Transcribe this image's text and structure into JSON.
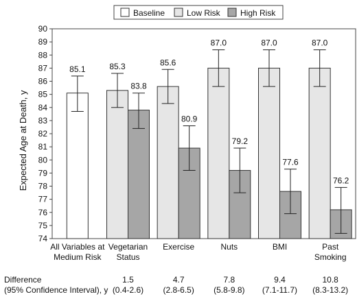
{
  "chart_data": {
    "type": "bar",
    "ylabel": "Expected Age at Death, y",
    "ylim": [
      74,
      90
    ],
    "yticks": [
      74,
      75,
      76,
      77,
      78,
      79,
      80,
      81,
      82,
      83,
      84,
      85,
      86,
      87,
      88,
      89,
      90
    ],
    "legend_position": "top-right",
    "categories": [
      [
        "All Variables at",
        "Medium Risk"
      ],
      [
        "Vegetarian",
        "Status"
      ],
      [
        "Exercise"
      ],
      [
        "Nuts"
      ],
      [
        "BMI"
      ],
      [
        "Past",
        "Smoking"
      ]
    ],
    "series": [
      {
        "name": "Baseline",
        "color": "#ffffff",
        "values": [
          85.1,
          null,
          null,
          null,
          null,
          null
        ],
        "labels": [
          "85.1",
          null,
          null,
          null,
          null,
          null
        ],
        "ci": [
          [
            83.7,
            86.4
          ],
          null,
          null,
          null,
          null,
          null
        ]
      },
      {
        "name": "Low Risk",
        "color": "#e6e6e6",
        "values": [
          null,
          85.3,
          85.6,
          87.0,
          87.0,
          87.0
        ],
        "labels": [
          null,
          "85.3",
          "85.6",
          "87.0",
          "87.0",
          "87.0"
        ],
        "ci": [
          null,
          [
            84.0,
            86.6
          ],
          [
            84.3,
            86.9
          ],
          [
            85.6,
            88.4
          ],
          [
            85.6,
            88.4
          ],
          [
            85.6,
            88.4
          ]
        ]
      },
      {
        "name": "High Risk",
        "color": "#a6a6a6",
        "values": [
          null,
          83.8,
          80.9,
          79.2,
          77.6,
          76.2
        ],
        "labels": [
          null,
          "83.8",
          "80.9",
          "79.2",
          "77.6",
          "76.2"
        ],
        "ci": [
          null,
          [
            82.4,
            85.1
          ],
          [
            79.2,
            82.6
          ],
          [
            77.5,
            80.9
          ],
          [
            75.9,
            79.3
          ],
          [
            74.4,
            77.9
          ]
        ]
      }
    ],
    "difference": {
      "label_line1": "Difference",
      "label_line2": "(95% Confidence Interval), y",
      "values": [
        null,
        "1.5",
        "4.7",
        "7.8",
        "9.4",
        "10.8"
      ],
      "intervals": [
        null,
        "(0.4-2.6)",
        "(2.8-6.5)",
        "(5.8-9.8)",
        "(7.1-11.7)",
        "(8.3-13.2)"
      ]
    }
  }
}
